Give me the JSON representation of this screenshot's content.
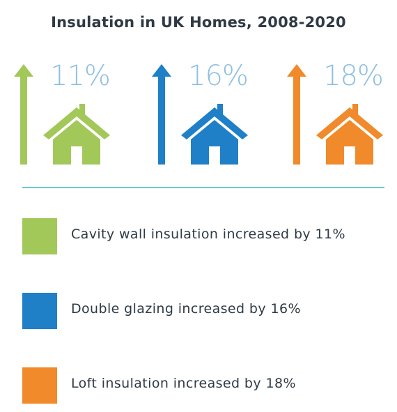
{
  "title": "Insulation in UK Homes, 2008-2020",
  "stats": [
    {
      "percent_label": "11%",
      "color": "#a3c85a",
      "icon": "arrow-up-icon house-icon"
    },
    {
      "percent_label": "16%",
      "color": "#1f80c8",
      "icon": "arrow-up-icon house-icon"
    },
    {
      "percent_label": "18%",
      "color": "#f18a2b",
      "icon": "arrow-up-icon house-icon"
    }
  ],
  "legend": [
    {
      "label": "Cavity wall insulation increased by 11%",
      "color": "#a3c85a"
    },
    {
      "label": "Double glazing increased by 16%",
      "color": "#1f80c8"
    },
    {
      "label": "Loft insulation increased by 18%",
      "color": "#f18a2b"
    }
  ],
  "accent": {
    "percent_text": "#8fbfe0",
    "divider": "#6cc6cf"
  }
}
